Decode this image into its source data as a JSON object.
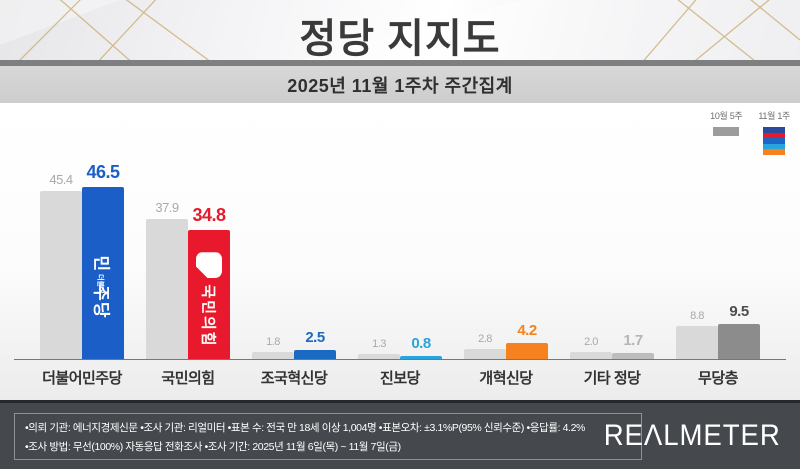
{
  "header": {
    "title": "정당 지지도"
  },
  "subtitle": {
    "text": "2025년 11월 1주차 주간집계"
  },
  "legend": {
    "prev": {
      "label": "10월 5주",
      "color": "#9c9c9c"
    },
    "curr": {
      "label": "11월 1주",
      "stripe_colors": [
        "#2b4a9b",
        "#e8192c",
        "#1c66c5",
        "#2aa4dc",
        "#f5821f"
      ]
    }
  },
  "chart_data": {
    "type": "bar",
    "title": "정당 지지도",
    "subtitle": "2025년 11월 1주차 주간집계",
    "categories": [
      "더불어민주당",
      "국민의힘",
      "조국혁신당",
      "진보당",
      "개혁신당",
      "기타 정당",
      "무당층"
    ],
    "series": [
      {
        "name": "10월 5주",
        "values": [
          45.4,
          37.9,
          1.8,
          1.3,
          2.8,
          2.0,
          8.8
        ]
      },
      {
        "name": "11월 1주",
        "values": [
          46.5,
          34.8,
          2.5,
          0.8,
          4.2,
          1.7,
          9.5
        ]
      }
    ],
    "unit": "%",
    "ylim": [
      0,
      50
    ],
    "grid": false,
    "legend_position": "top-right"
  },
  "party_styles": [
    {
      "bar_color": "#1c5ec8",
      "value_color": "#1c5ec8",
      "logo": "minjoo",
      "logo_small": "더불어",
      "logo_big_head": "민",
      "logo_big_tail": "주당"
    },
    {
      "bar_color": "#e8192c",
      "value_color": "#e8192c",
      "logo": "ppp",
      "logo_text": "국민의힘"
    },
    {
      "bar_color": "#1b6ac1",
      "value_color": "#1b6ac1"
    },
    {
      "bar_color": "#2aa4dc",
      "value_color": "#2aa4dc"
    },
    {
      "bar_color": "#f5821f",
      "value_color": "#f5821f"
    },
    {
      "bar_color": "#bdbdbd",
      "value_color": "#b5b5b5"
    },
    {
      "bar_color": "#8c8c8c",
      "value_color": "#4d4d4d"
    }
  ],
  "prev_style": {
    "bar_color": "#d9d9d9",
    "value_color": "#a9a9a9"
  },
  "footer": {
    "line1": "•의뢰 기관: 에너지경제신문  •조사 기관: 리얼미터 •표본 수: 전국 만 18세 이상 1,004명 •표본오차: ±3.1%P(95% 신뢰수준) •응답률: 4.2%",
    "line2": "•조사 방법: 무선(100%) 자동응답 전화조사 •조사 기간: 2025년 11월 6일(목) ~ 11월 7일(금)",
    "logo": "REΛLMETER"
  }
}
